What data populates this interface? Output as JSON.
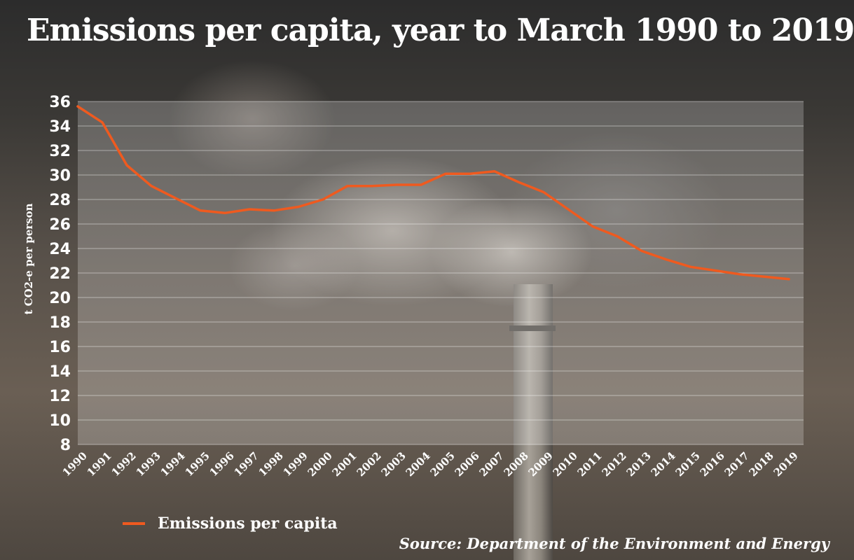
{
  "chart_data": {
    "type": "line",
    "title": "Emissions per capita, year to March 1990 to 2019",
    "xlabel": "",
    "ylabel": "t CO2-e per person",
    "ylim": [
      8,
      36
    ],
    "yticks": [
      8,
      10,
      12,
      14,
      16,
      18,
      20,
      22,
      24,
      26,
      28,
      30,
      32,
      34,
      36
    ],
    "categories": [
      "1990",
      "1991",
      "1992",
      "1993",
      "1994",
      "1995",
      "1996",
      "1997",
      "1998",
      "1999",
      "2000",
      "2001",
      "2002",
      "2003",
      "2004",
      "2005",
      "2006",
      "2007",
      "2008",
      "2009",
      "2010",
      "2011",
      "2012",
      "2013",
      "2014",
      "2015",
      "2016",
      "2017",
      "2018",
      "2019"
    ],
    "series": [
      {
        "name": "Emissions per capita",
        "color": "#ef5a1f",
        "values": [
          35.6,
          34.3,
          30.8,
          29.1,
          28.1,
          27.1,
          26.9,
          27.2,
          27.1,
          27.4,
          28.0,
          29.1,
          29.1,
          29.2,
          29.2,
          30.1,
          30.1,
          30.3,
          29.4,
          28.6,
          27.2,
          25.8,
          25.0,
          23.8,
          23.1,
          22.5,
          22.2,
          21.9,
          21.7,
          21.5
        ]
      }
    ],
    "grid": true,
    "legend": "bottom-left"
  },
  "source": "Source: Department of the Environment and Energy"
}
